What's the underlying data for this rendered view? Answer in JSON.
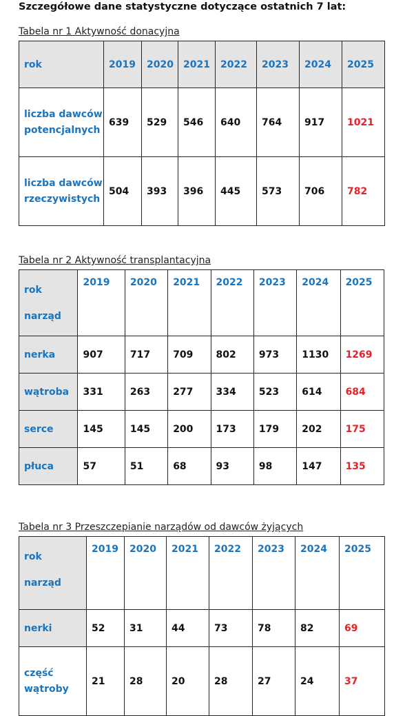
{
  "heading": "Szczegółowe dane statystyczne dotyczące ostatnich 7 lat:",
  "years": [
    "2019",
    "2020",
    "2021",
    "2022",
    "2023",
    "2024",
    "2025"
  ],
  "table1": {
    "caption": "Tabela nr 1 Aktywność donacyjna",
    "header_label": "rok",
    "rows": [
      {
        "label": "liczba dawców potencjalnych",
        "values": [
          "639",
          "529",
          "546",
          "640",
          "764",
          "917",
          "1021"
        ]
      },
      {
        "label": "liczba dawców rzeczywistych",
        "values": [
          "504",
          "393",
          "396",
          "445",
          "573",
          "706",
          "782"
        ]
      }
    ]
  },
  "table2": {
    "caption": "Tabela nr 2 Aktywność transplantacyjna",
    "header_label_1": "rok",
    "header_label_2": "narząd",
    "rows": [
      {
        "label": "nerka",
        "values": [
          "907",
          "717",
          "709",
          "802",
          "973",
          "1130",
          "1269"
        ]
      },
      {
        "label": "wątroba",
        "values": [
          "331",
          "263",
          "277",
          "334",
          "523",
          "614",
          "684"
        ]
      },
      {
        "label": "serce",
        "values": [
          "145",
          "145",
          "200",
          "173",
          "179",
          "202",
          "175"
        ]
      },
      {
        "label": "płuca",
        "values": [
          "57",
          "51",
          "68",
          "93",
          "98",
          "147",
          "135"
        ]
      }
    ]
  },
  "table3": {
    "caption": "Tabela nr 3 Przeszczepianie narządów od dawców żyjących",
    "header_label_1": "rok",
    "header_label_2": "narząd",
    "rows": [
      {
        "label": "nerki",
        "values": [
          "52",
          "31",
          "44",
          "73",
          "78",
          "82",
          "69"
        ]
      },
      {
        "label": "część wątroby",
        "values": [
          "21",
          "28",
          "20",
          "28",
          "27",
          "24",
          "37"
        ]
      }
    ]
  },
  "colors": {
    "label_blue": "#1b74bd",
    "highlight_red": "#e8202a",
    "header_grey": "#e4e4e4"
  }
}
